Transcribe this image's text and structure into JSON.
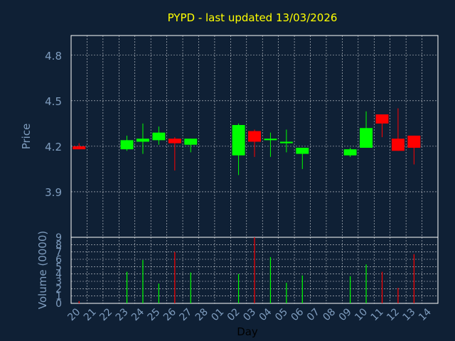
{
  "colors": {
    "background": "#0f2035",
    "plot_border": "#ffffff",
    "grid": "#ffffff",
    "title": "#ffff00",
    "tick_label": "#7f9dbf",
    "axis_label": "#7f9dbf",
    "xlabel": "#000000",
    "up": "#00ff00",
    "down": "#ff0000"
  },
  "chart_data": [
    {
      "type": "candlestick",
      "title": "PYPD - last updated 13/03/2026",
      "ylabel": "Price",
      "ylim": [
        3.6,
        4.93
      ],
      "yticks": [
        3.9,
        4.2,
        4.5,
        4.8
      ],
      "ytick_labels": [
        "3.9",
        "4.2",
        "4.5",
        "4.8"
      ],
      "grid": true,
      "candles": [
        {
          "x": "20",
          "open": 4.2,
          "high": 4.22,
          "low": 4.18,
          "close": 4.18
        },
        {
          "x": "23",
          "open": 4.18,
          "high": 4.27,
          "low": 4.17,
          "close": 4.24
        },
        {
          "x": "24",
          "open": 4.23,
          "high": 4.35,
          "low": 4.15,
          "close": 4.25
        },
        {
          "x": "25",
          "open": 4.24,
          "high": 4.33,
          "low": 4.21,
          "close": 4.29
        },
        {
          "x": "26",
          "open": 4.25,
          "high": 4.26,
          "low": 4.04,
          "close": 4.22
        },
        {
          "x": "27",
          "open": 4.21,
          "high": 4.25,
          "low": 4.16,
          "close": 4.25
        },
        {
          "x": "02",
          "open": 4.14,
          "high": 4.35,
          "low": 4.01,
          "close": 4.34
        },
        {
          "x": "03",
          "open": 4.3,
          "high": 4.31,
          "low": 4.13,
          "close": 4.23
        },
        {
          "x": "04",
          "open": 4.24,
          "high": 4.29,
          "low": 4.13,
          "close": 4.25
        },
        {
          "x": "05",
          "open": 4.22,
          "high": 4.31,
          "low": 4.16,
          "close": 4.23
        },
        {
          "x": "06",
          "open": 4.15,
          "high": 4.19,
          "low": 4.05,
          "close": 4.19
        },
        {
          "x": "09",
          "open": 4.14,
          "high": 4.19,
          "low": 4.13,
          "close": 4.18
        },
        {
          "x": "10",
          "open": 4.19,
          "high": 4.43,
          "low": 4.19,
          "close": 4.32
        },
        {
          "x": "11",
          "open": 4.41,
          "high": 4.41,
          "low": 4.26,
          "close": 4.35
        },
        {
          "x": "12",
          "open": 4.25,
          "high": 4.45,
          "low": 4.17,
          "close": 4.17
        },
        {
          "x": "13",
          "open": 4.27,
          "high": 4.27,
          "low": 4.08,
          "close": 4.19
        }
      ]
    },
    {
      "type": "bar",
      "ylabel": "Volume (0000)",
      "xlabel": "Day",
      "ylim": [
        0,
        9
      ],
      "yticks": [
        0,
        1,
        2,
        3,
        4,
        5,
        6,
        7,
        8,
        9
      ],
      "ytick_labels": [
        "0",
        "1",
        "2",
        "3",
        "4",
        "5",
        "6",
        "7",
        "8",
        "9"
      ],
      "categories": [
        "20",
        "21",
        "22",
        "23",
        "24",
        "25",
        "26",
        "27",
        "28",
        "01",
        "02",
        "03",
        "04",
        "05",
        "06",
        "07",
        "08",
        "09",
        "10",
        "11",
        "12",
        "13",
        "14"
      ],
      "values": [
        0.3,
        0,
        0,
        4.3,
        5.9,
        2.7,
        7.0,
        4.2,
        0,
        0,
        4.0,
        9.0,
        6.3,
        2.8,
        3.8,
        0,
        0,
        3.7,
        5.3,
        4.3,
        2.1,
        6.7,
        0
      ],
      "directions": [
        "down",
        "",
        "",
        "up",
        "up",
        "up",
        "down",
        "up",
        "",
        "",
        "up",
        "down",
        "up",
        "up",
        "up",
        "",
        "",
        "up",
        "up",
        "down",
        "down",
        "down",
        ""
      ],
      "grid": true
    }
  ]
}
